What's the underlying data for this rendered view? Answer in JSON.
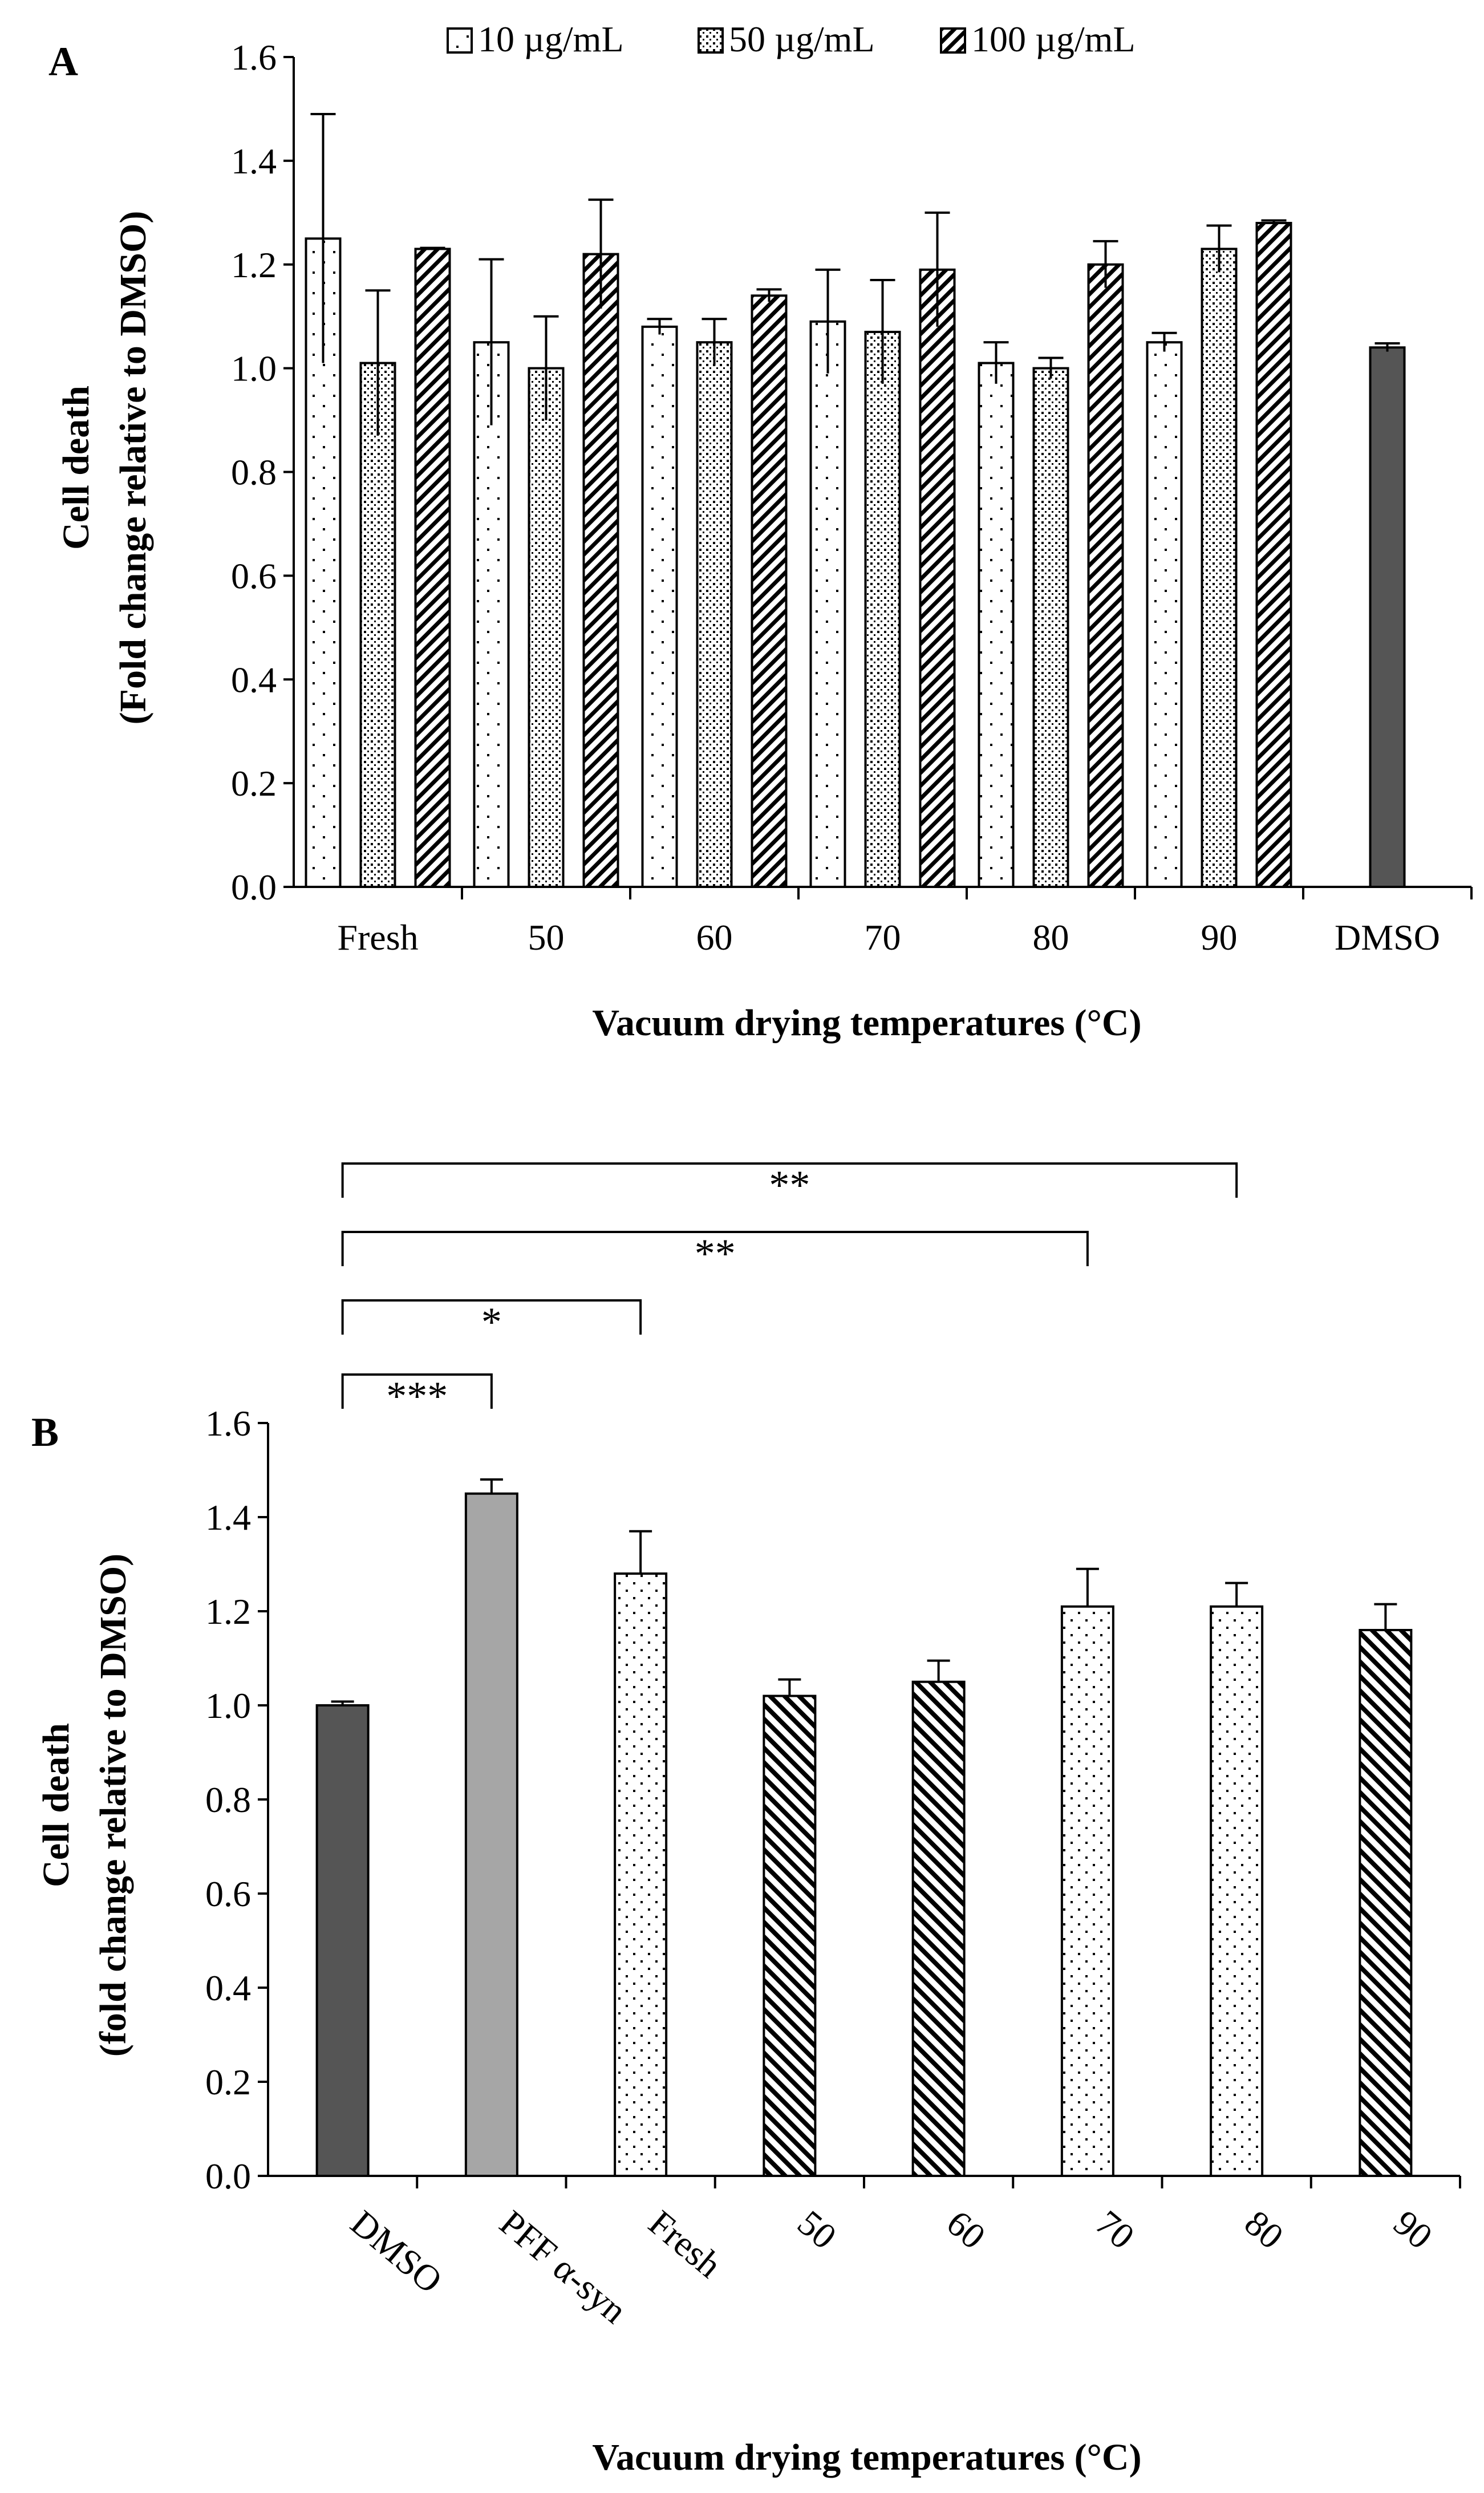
{
  "panel_a": {
    "letter": "A",
    "ylabel_line1": "Cell death",
    "ylabel_line2": "(Fold change relative to DMSO)",
    "xlabel": "Vacuum drying temperatures (°C)",
    "legend": [
      "10 µg/mL",
      "50 µg/mL",
      "100 µg/mL"
    ],
    "dmso_color": "#555555"
  },
  "panel_b": {
    "letter": "B",
    "ylabel_line1": "Cell death",
    "ylabel_line2": "(fold change relative to DMSO)",
    "xlabel": "Vacuum drying temperatures (°C)",
    "significance": [
      "***",
      "*",
      "**",
      "**"
    ],
    "colors": {
      "dmso": "#555555",
      "pff": "#a6a6a6"
    }
  },
  "chart_data": [
    {
      "type": "bar",
      "panel": "A",
      "title": "",
      "xlabel": "Vacuum drying temperatures (°C)",
      "ylabel": "Cell death (Fold change relative to DMSO)",
      "ylim": [
        0,
        1.6
      ],
      "yticks": [
        "0.0",
        "0.2",
        "0.4",
        "0.6",
        "0.8",
        "1.0",
        "1.2",
        "1.4",
        "1.6"
      ],
      "categories": [
        "Fresh",
        "50",
        "60",
        "70",
        "80",
        "90",
        "DMSO"
      ],
      "series": [
        {
          "name": "10 µg/mL",
          "pattern": "dots-sparse",
          "values": [
            1.25,
            1.05,
            1.08,
            1.09,
            1.01,
            1.05,
            null
          ],
          "errors": [
            0.24,
            0.16,
            0.015,
            0.1,
            0.04,
            0.018,
            null
          ]
        },
        {
          "name": "50 µg/mL",
          "pattern": "dots-dense",
          "values": [
            1.01,
            1.0,
            1.05,
            1.07,
            1.0,
            1.23,
            null
          ],
          "errors": [
            0.14,
            0.1,
            0.045,
            0.1,
            0.02,
            0.045,
            null
          ]
        },
        {
          "name": "100 µg/mL",
          "pattern": "diagonal",
          "values": [
            1.23,
            1.22,
            1.14,
            1.19,
            1.2,
            1.28,
            null
          ],
          "errors": [
            0.002,
            0.105,
            0.012,
            0.11,
            0.045,
            0.005,
            null
          ]
        },
        {
          "name": "DMSO",
          "pattern": "solid-dark",
          "values": [
            null,
            null,
            null,
            null,
            null,
            null,
            1.04
          ],
          "errors": [
            null,
            null,
            null,
            null,
            null,
            null,
            0.008
          ]
        }
      ]
    },
    {
      "type": "bar",
      "panel": "B",
      "title": "",
      "xlabel": "Vacuum drying temperatures (°C)",
      "ylabel": "Cell death (fold change relative to DMSO)",
      "ylim": [
        0,
        1.6
      ],
      "yticks": [
        "0.0",
        "0.2",
        "0.4",
        "0.6",
        "0.8",
        "1.0",
        "1.2",
        "1.4",
        "1.6"
      ],
      "categories": [
        "DMSO",
        "PFF α-syn",
        "Fresh",
        "50",
        "60",
        "70",
        "80",
        "90"
      ],
      "values": [
        1.0,
        1.45,
        1.28,
        1.02,
        1.05,
        1.21,
        1.21,
        1.16
      ],
      "errors": [
        0.008,
        0.03,
        0.09,
        0.035,
        0.045,
        0.08,
        0.05,
        0.055
      ],
      "patterns": [
        "solid-dark",
        "solid-gray",
        "dots",
        "diagonal",
        "diagonal",
        "dots",
        "dots",
        "diagonal"
      ],
      "significance": [
        {
          "from": "DMSO",
          "to": "PFF α-syn",
          "label": "***"
        },
        {
          "from": "DMSO",
          "to": "Fresh",
          "label": "*"
        },
        {
          "from": "DMSO",
          "to": "70",
          "label": "**"
        },
        {
          "from": "DMSO",
          "to": "80",
          "label": "**"
        }
      ]
    }
  ]
}
